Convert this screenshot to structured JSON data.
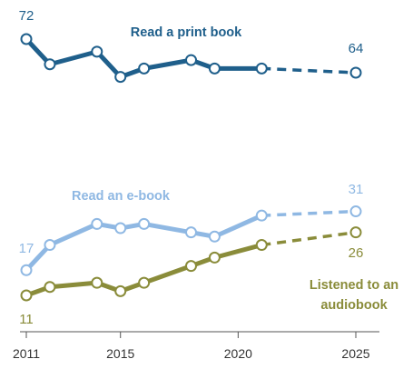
{
  "chart_data": {
    "type": "line",
    "x_ticks": [
      2011,
      2015,
      2020,
      2025
    ],
    "xlim": [
      2011,
      2025
    ],
    "ylim": [
      11,
      72
    ],
    "series": [
      {
        "name": "Read a print book",
        "color": "#1f5f8b",
        "label_text": "Read a print book",
        "solid": [
          [
            2011,
            72
          ],
          [
            2012,
            66
          ],
          [
            2014,
            69
          ],
          [
            2015,
            63
          ],
          [
            2016,
            65
          ],
          [
            2018,
            67
          ],
          [
            2019,
            65
          ],
          [
            2021,
            65
          ]
        ],
        "dashed": [
          [
            2021,
            65
          ],
          [
            2025,
            64
          ]
        ],
        "start_label": "72",
        "end_label": "64"
      },
      {
        "name": "Read an e-book",
        "color": "#8fb8e3",
        "label_text": "Read an e-book",
        "solid": [
          [
            2011,
            17
          ],
          [
            2012,
            23
          ],
          [
            2014,
            28
          ],
          [
            2015,
            27
          ],
          [
            2016,
            28
          ],
          [
            2018,
            26
          ],
          [
            2019,
            25
          ],
          [
            2021,
            30
          ]
        ],
        "dashed": [
          [
            2021,
            30
          ],
          [
            2025,
            31
          ]
        ],
        "start_label": "17",
        "end_label": "31"
      },
      {
        "name": "Listened to an audiobook",
        "color": "#8a8c3a",
        "label_lines": [
          "Listened to an",
          "audiobook"
        ],
        "solid": [
          [
            2011,
            11
          ],
          [
            2012,
            13
          ],
          [
            2014,
            14
          ],
          [
            2015,
            12
          ],
          [
            2016,
            14
          ],
          [
            2018,
            18
          ],
          [
            2019,
            20
          ],
          [
            2021,
            23
          ]
        ],
        "dashed": [
          [
            2021,
            23
          ],
          [
            2025,
            26
          ]
        ],
        "start_label": "11",
        "end_label": "26"
      }
    ]
  }
}
